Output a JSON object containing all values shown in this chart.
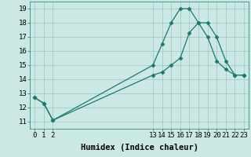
{
  "line1_x": [
    0,
    1,
    2,
    13,
    14,
    15,
    16,
    17,
    18,
    19,
    20,
    21,
    22,
    23
  ],
  "line1_y": [
    12.7,
    12.3,
    11.1,
    15.0,
    16.5,
    18.0,
    19.0,
    19.0,
    18.0,
    17.0,
    15.3,
    14.7,
    14.3,
    14.3
  ],
  "line2_x": [
    0,
    1,
    2,
    13,
    14,
    15,
    16,
    17,
    18,
    19,
    20,
    21,
    22,
    23
  ],
  "line2_y": [
    12.7,
    12.3,
    11.1,
    14.3,
    14.5,
    15.0,
    15.5,
    17.3,
    18.0,
    18.0,
    17.0,
    15.3,
    14.3,
    14.3
  ],
  "color": "#1a7a6e",
  "bg_color": "#cce8e4",
  "grid_color": "#a0ccc8",
  "xlabel": "Humidex (Indice chaleur)",
  "ylim": [
    10.5,
    19.5
  ],
  "xlim": [
    -0.5,
    23.5
  ],
  "xticks": [
    0,
    1,
    2,
    13,
    14,
    15,
    16,
    17,
    18,
    19,
    20,
    21,
    22,
    23
  ],
  "yticks": [
    11,
    12,
    13,
    14,
    15,
    16,
    17,
    18,
    19
  ],
  "xlabel_fontsize": 7.5,
  "tick_fontsize": 6.5,
  "marker_size": 2.5,
  "linewidth": 0.9
}
